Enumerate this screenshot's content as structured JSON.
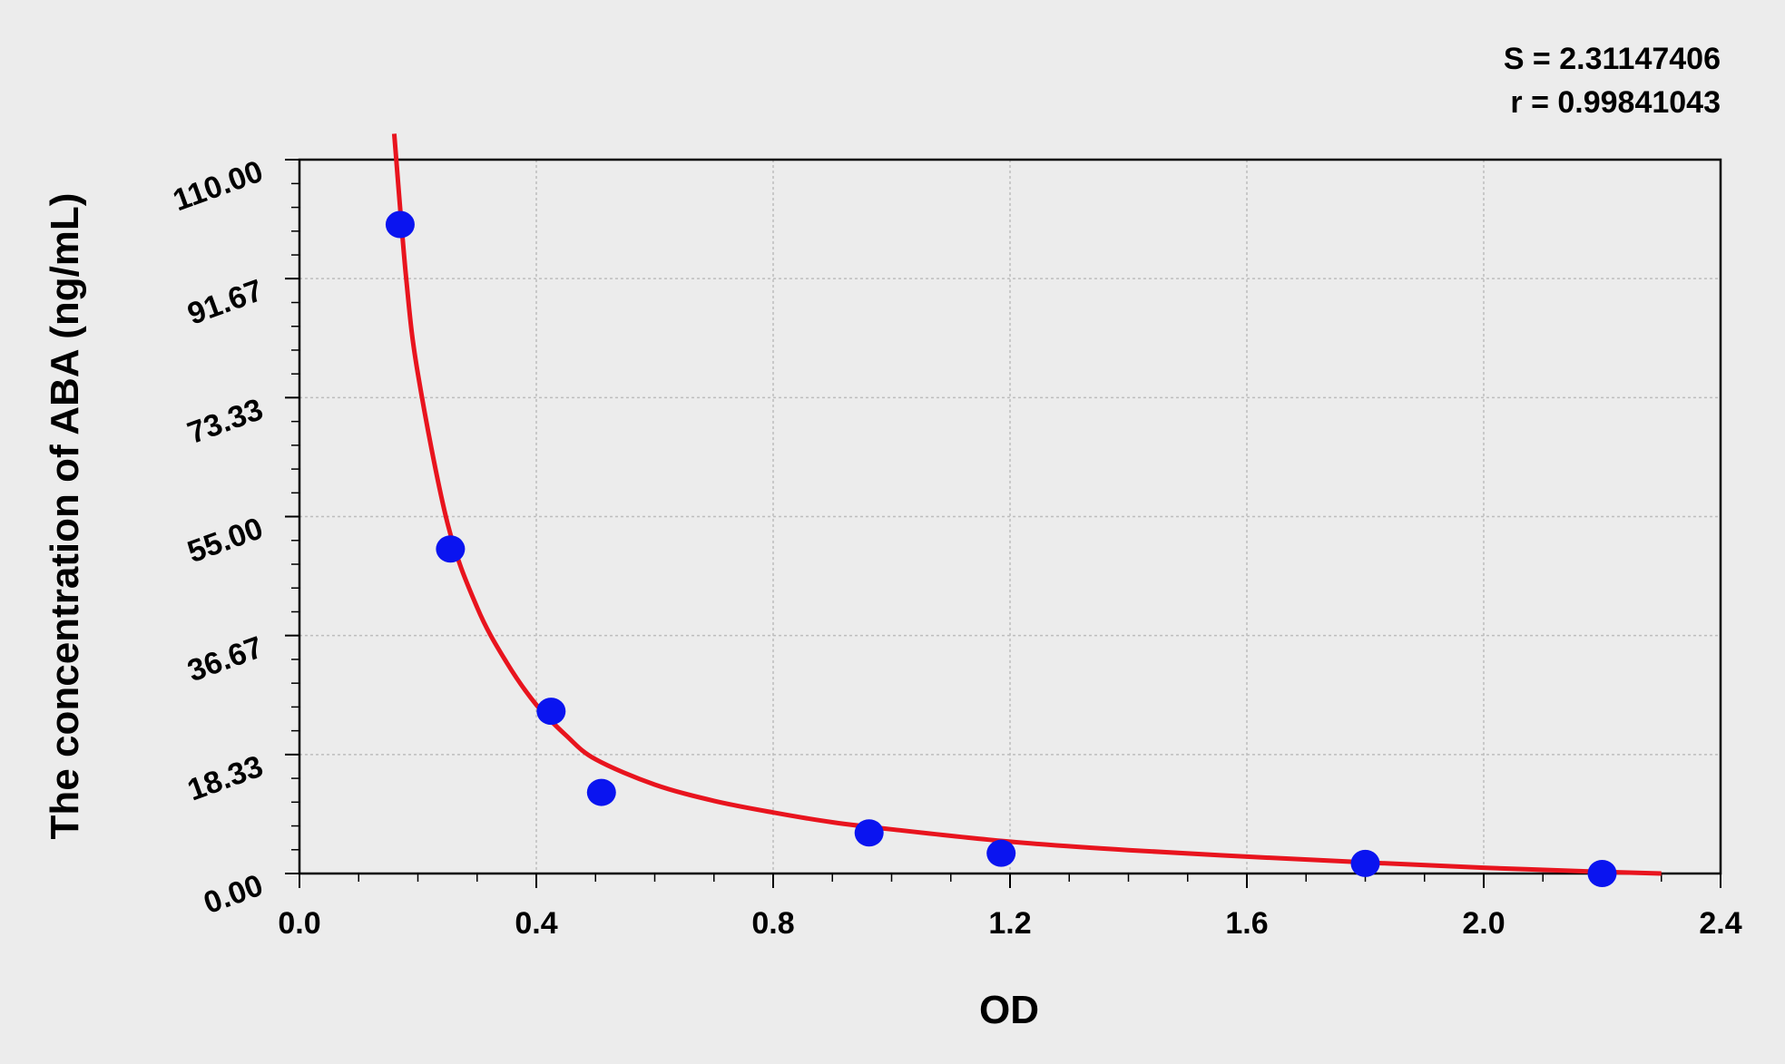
{
  "chart_data": {
    "type": "scatter",
    "xlabel": "OD",
    "ylabel": "The concentration of ABA (ng/mL)",
    "xlim": [
      0.0,
      2.4
    ],
    "ylim": [
      0.0,
      110.0
    ],
    "x_ticks": [
      "0.0",
      "0.4",
      "0.8",
      "1.2",
      "1.6",
      "2.0",
      "2.4"
    ],
    "y_ticks": [
      "0.00",
      "18.33",
      "36.67",
      "55.00",
      "73.33",
      "91.67",
      "110.00"
    ],
    "grid": true,
    "annotations": {
      "S": "S = 2.31147406",
      "r": "r = 0.99841043"
    },
    "series": [
      {
        "kind": "points",
        "color": "#0a14f0",
        "x": [
          0.17,
          0.255,
          0.425,
          0.51,
          0.962,
          1.185,
          1.8,
          2.2
        ],
        "y": [
          100,
          50,
          25,
          12.5,
          6.25,
          3.12,
          1.56,
          0
        ]
      },
      {
        "kind": "fit-curve",
        "color": "#e8141e",
        "x": [
          0.16,
          0.18,
          0.2,
          0.25,
          0.3,
          0.35,
          0.4,
          0.45,
          0.5,
          0.6,
          0.7,
          0.8,
          0.9,
          1.0,
          1.2,
          1.4,
          1.6,
          1.8,
          2.0,
          2.2,
          2.3
        ],
        "y": [
          114,
          92,
          77,
          54,
          41,
          32.5,
          26,
          21.3,
          17.6,
          13.7,
          11.2,
          9.4,
          7.9,
          6.8,
          4.9,
          3.6,
          2.6,
          1.7,
          0.9,
          0.25,
          0
        ]
      }
    ]
  }
}
